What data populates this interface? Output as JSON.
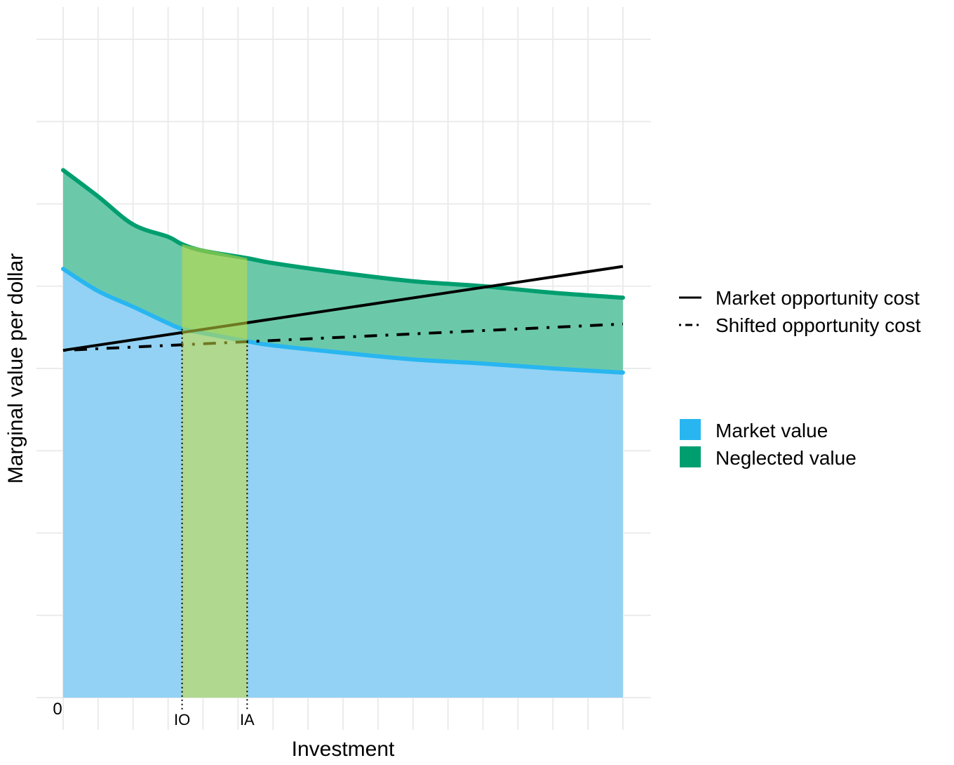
{
  "chart_data": {
    "type": "area",
    "title": "",
    "xlabel": "Investment",
    "ylabel": "Marginal value per dollar",
    "xlim": [
      0,
      8
    ],
    "ylim": [
      0,
      8
    ],
    "grid": true,
    "x_ticks": [
      {
        "x": 0,
        "label": "0"
      },
      {
        "x": 1.7,
        "label": "IO"
      },
      {
        "x": 2.63,
        "label": "IA"
      }
    ],
    "x": [
      0,
      0.5,
      1,
      1.5,
      1.7,
      2,
      2.63,
      3,
      4,
      5,
      6,
      7,
      8
    ],
    "series": [
      {
        "name": "Market value",
        "kind": "area",
        "color": "#29B6F0",
        "fill": "#93D2F4",
        "values": [
          5.21,
          4.94,
          4.75,
          4.55,
          4.48,
          4.43,
          4.33,
          4.28,
          4.19,
          4.11,
          4.06,
          4.0,
          3.95
        ]
      },
      {
        "name": "Neglected value",
        "kind": "area",
        "color": "#009E6F",
        "fill": "#6BC9AA",
        "values": [
          6.41,
          6.09,
          5.75,
          5.6,
          5.51,
          5.43,
          5.34,
          5.28,
          5.16,
          5.06,
          5.0,
          4.92,
          4.86
        ]
      },
      {
        "name": "Market opportunity cost",
        "kind": "line",
        "style": "solid",
        "color": "#000000",
        "x": [
          0,
          8
        ],
        "values": [
          4.22,
          5.24
        ]
      },
      {
        "name": "Shifted opportunity cost",
        "kind": "line",
        "style": "dashdot",
        "color": "#000000",
        "x": [
          0,
          8
        ],
        "values": [
          4.22,
          4.54
        ]
      }
    ],
    "highlight": {
      "x_from": 1.7,
      "x_to": 2.63,
      "color": "#C8DC3C"
    },
    "legend": {
      "placement": "right",
      "lines": [
        {
          "label": "Market opportunity cost",
          "style": "solid"
        },
        {
          "label": "Shifted opportunity cost",
          "style": "dashdot"
        }
      ],
      "fills": [
        {
          "label": "Market value",
          "color": "#29B6F0"
        },
        {
          "label": "Neglected value",
          "color": "#009E6F"
        }
      ]
    }
  }
}
